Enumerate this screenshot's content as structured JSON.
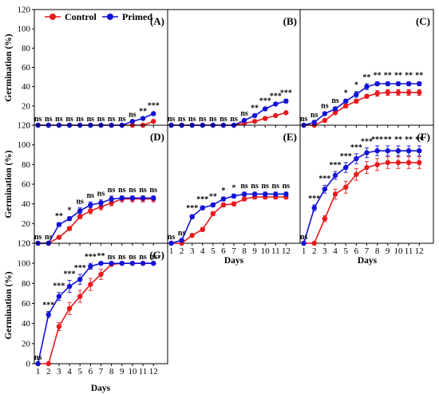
{
  "figure": {
    "ylabel": "Germination (%)",
    "xlabel": "Days",
    "legend": {
      "control": "Control",
      "primed": "Primed"
    }
  },
  "colors": {
    "control": "#e8191c",
    "primed": "#1212d6"
  },
  "chart_data": [
    {
      "type": "line",
      "panel": "(A)",
      "x": [
        1,
        2,
        3,
        4,
        5,
        6,
        7,
        8,
        9,
        10,
        11,
        12
      ],
      "xlim": [
        1,
        12
      ],
      "ylim": [
        0,
        120
      ],
      "yticks": [
        0,
        20,
        40,
        60,
        80,
        100,
        120
      ],
      "series": [
        {
          "name": "Control",
          "values": [
            0,
            0,
            0,
            0,
            0,
            0,
            0,
            0,
            0,
            0,
            0,
            4
          ],
          "err": [
            0,
            0,
            0,
            0,
            0,
            0,
            0,
            0,
            0,
            0,
            0,
            0.5
          ]
        },
        {
          "name": "Primed",
          "values": [
            0,
            0,
            0,
            0,
            0,
            0,
            0,
            0,
            0,
            4,
            7,
            12
          ],
          "err": [
            0,
            0,
            0,
            0,
            0,
            0,
            0,
            0,
            0,
            0.5,
            1,
            1.5
          ]
        }
      ],
      "significance": [
        "ns",
        "ns",
        "ns",
        "ns",
        "ns",
        "ns",
        "ns",
        "ns",
        "ns",
        "ns",
        "**",
        "***"
      ]
    },
    {
      "type": "line",
      "panel": "(B)",
      "x": [
        1,
        2,
        3,
        4,
        5,
        6,
        7,
        8,
        9,
        10,
        11,
        12
      ],
      "xlim": [
        1,
        12
      ],
      "ylim": [
        0,
        120
      ],
      "series": [
        {
          "name": "Control",
          "values": [
            0,
            0,
            0,
            0,
            0,
            0,
            0,
            2,
            4,
            7,
            10,
            13
          ],
          "err": [
            0,
            0,
            0,
            0,
            0,
            0,
            0,
            0.5,
            0.5,
            1,
            1,
            1
          ]
        },
        {
          "name": "Primed",
          "values": [
            0,
            0,
            0,
            0,
            0,
            0,
            0,
            5,
            10,
            17,
            22,
            25
          ],
          "err": [
            0,
            0,
            0,
            0,
            0,
            0,
            0,
            1,
            1,
            1.5,
            1.5,
            2
          ]
        }
      ],
      "significance": [
        "ns",
        "ns",
        "ns",
        "ns",
        "ns",
        "ns",
        "ns",
        "ns",
        "**",
        "***",
        "***",
        "***"
      ]
    },
    {
      "type": "line",
      "panel": "(C)",
      "x": [
        1,
        2,
        3,
        4,
        5,
        6,
        7,
        8,
        9,
        10,
        11,
        12
      ],
      "xlim": [
        1,
        12
      ],
      "ylim": [
        0,
        120
      ],
      "series": [
        {
          "name": "Control",
          "values": [
            0,
            0,
            5,
            13,
            20,
            25,
            30,
            33,
            34,
            34,
            34,
            34
          ],
          "err": [
            0,
            0,
            1,
            1.5,
            2,
            2,
            2,
            3,
            3,
            3,
            3,
            3
          ]
        },
        {
          "name": "Primed",
          "values": [
            0,
            3,
            12,
            17,
            25,
            32,
            40,
            43,
            43,
            43,
            43,
            43
          ],
          "err": [
            0,
            1,
            1.5,
            2,
            2,
            3,
            3,
            2,
            2,
            2,
            2,
            2
          ]
        }
      ],
      "significance": [
        "ns",
        "ns",
        "ns",
        "ns",
        "*",
        "*",
        "**",
        "**",
        "**",
        "**",
        "**",
        "**"
      ]
    },
    {
      "type": "line",
      "panel": "(D)",
      "x": [
        1,
        2,
        3,
        4,
        5,
        6,
        7,
        8,
        9,
        10,
        11,
        12
      ],
      "xlim": [
        1,
        12
      ],
      "ylim": [
        0,
        120
      ],
      "yticks": [
        0,
        20,
        40,
        60,
        80,
        100,
        120
      ],
      "series": [
        {
          "name": "Control",
          "values": [
            0,
            0,
            6,
            15,
            27,
            33,
            37,
            41,
            45,
            45,
            45,
            45
          ],
          "err": [
            0,
            0,
            1,
            2,
            2,
            3,
            3,
            3,
            3,
            3,
            3,
            3
          ]
        },
        {
          "name": "Primed",
          "values": [
            0,
            0,
            19,
            25,
            33,
            39,
            41,
            45,
            46,
            46,
            46,
            46
          ],
          "err": [
            0,
            0,
            2,
            2,
            3,
            3,
            3,
            3,
            2,
            2,
            2,
            2
          ]
        }
      ],
      "significance": [
        "ns",
        "ns",
        "**",
        "*",
        "ns",
        "ns",
        "ns",
        "ns",
        "ns",
        "ns",
        "ns",
        "ns"
      ]
    },
    {
      "type": "line",
      "panel": "(E)",
      "x": [
        1,
        2,
        3,
        4,
        5,
        6,
        7,
        8,
        9,
        10,
        11,
        12
      ],
      "xlim": [
        1,
        12
      ],
      "ylim": [
        0,
        120
      ],
      "series": [
        {
          "name": "Control",
          "values": [
            0,
            0,
            8,
            14,
            30,
            39,
            40,
            45,
            47,
            47,
            47,
            47
          ],
          "err": [
            0,
            0,
            1,
            2,
            2,
            2,
            2,
            2,
            2,
            2,
            2,
            2
          ]
        },
        {
          "name": "Primed",
          "values": [
            0,
            3,
            27,
            36,
            39,
            45,
            48,
            50,
            50,
            50,
            50,
            50
          ],
          "err": [
            0,
            1,
            2,
            2,
            2,
            2,
            2,
            2,
            2,
            2,
            2,
            2
          ]
        }
      ],
      "significance": [
        "ns",
        "ns",
        "***",
        "***",
        "**",
        "*",
        "*",
        "ns",
        "ns",
        "ns",
        "ns",
        "ns"
      ]
    },
    {
      "type": "line",
      "panel": "(F)",
      "x": [
        1,
        2,
        3,
        4,
        5,
        6,
        7,
        8,
        9,
        10,
        11,
        12
      ],
      "xlim": [
        1,
        12
      ],
      "ylim": [
        0,
        120
      ],
      "series": [
        {
          "name": "Control",
          "values": [
            0,
            0,
            25,
            50,
            57,
            70,
            77,
            80,
            82,
            82,
            82,
            82
          ],
          "err": [
            0,
            0,
            3,
            5,
            6,
            6,
            6,
            6,
            6,
            6,
            6,
            6
          ]
        },
        {
          "name": "Primed",
          "values": [
            0,
            36,
            55,
            69,
            77,
            86,
            92,
            94,
            94,
            94,
            94,
            94
          ],
          "err": [
            0,
            3,
            4,
            4,
            5,
            5,
            5,
            5,
            5,
            5,
            5,
            5
          ]
        }
      ],
      "significance": [
        "ns",
        "***",
        "***",
        "***",
        "***",
        "***",
        "***",
        "***",
        "**",
        "**",
        "**",
        "**"
      ]
    },
    {
      "type": "line",
      "panel": "(G)",
      "x": [
        1,
        2,
        3,
        4,
        5,
        6,
        7,
        8,
        9,
        10,
        11,
        12
      ],
      "xlim": [
        1,
        12
      ],
      "ylim": [
        0,
        120
      ],
      "yticks": [
        0,
        20,
        40,
        60,
        80,
        100,
        120
      ],
      "series": [
        {
          "name": "Control",
          "values": [
            0,
            0,
            37,
            55,
            67,
            79,
            89,
            99,
            100,
            100,
            100,
            100
          ],
          "err": [
            0,
            0,
            4,
            6,
            6,
            6,
            5,
            1,
            0,
            0,
            0,
            0
          ]
        },
        {
          "name": "Primed",
          "values": [
            0,
            49,
            67,
            77,
            84,
            97,
            100,
            100,
            100,
            100,
            100,
            100
          ],
          "err": [
            0,
            3,
            4,
            6,
            5,
            3,
            1,
            0,
            0,
            0,
            0,
            0
          ]
        }
      ],
      "significance": [
        "ns",
        "***",
        "***",
        "***",
        "***",
        "***",
        "**",
        "ns",
        "ns",
        "ns",
        "ns",
        "ns"
      ]
    }
  ]
}
